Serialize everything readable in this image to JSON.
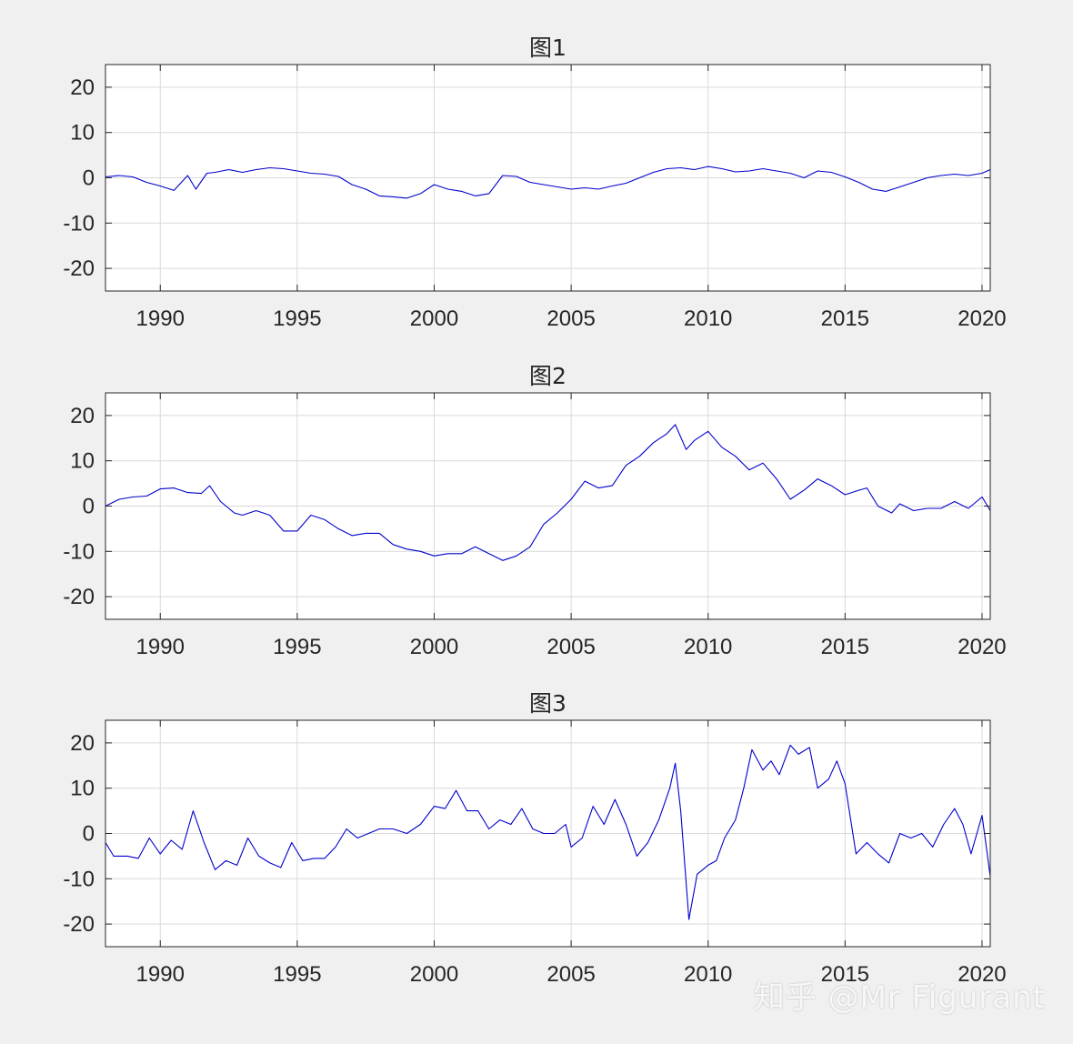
{
  "figure": {
    "background": "#f0f0f0",
    "watermark": "知乎 @Mr Figurant"
  },
  "colors": {
    "axes_bg": "#ffffff",
    "line": "#0000cc",
    "grid": "#d9d9d9",
    "text": "#262626",
    "axis": "#262626"
  },
  "chart_data": [
    {
      "type": "line",
      "title": "图1",
      "xlabel": "",
      "ylabel": "",
      "xlim": [
        1988.0,
        2020.3
      ],
      "ylim": [
        -25,
        25
      ],
      "xticks": [
        1990,
        1995,
        2000,
        2005,
        2010,
        2015,
        2020
      ],
      "yticks": [
        20,
        10,
        0,
        -10,
        -20
      ],
      "grid": true,
      "series": [
        {
          "x": [
            1988.0,
            1988.5,
            1989.0,
            1989.5,
            1990.0,
            1990.5,
            1991.0,
            1991.3,
            1991.7,
            1992.0,
            1992.5,
            1993.0,
            1993.5,
            1994.0,
            1994.5,
            1995.0,
            1995.5,
            1996.0,
            1996.5,
            1997.0,
            1997.5,
            1998.0,
            1998.5,
            1999.0,
            1999.5,
            2000.0,
            2000.5,
            2001.0,
            2001.5,
            2002.0,
            2002.5,
            2003.0,
            2003.5,
            2004.0,
            2004.5,
            2005.0,
            2005.5,
            2006.0,
            2006.5,
            2007.0,
            2007.5,
            2008.0,
            2008.5,
            2009.0,
            2009.5,
            2010.0,
            2010.5,
            2011.0,
            2011.5,
            2012.0,
            2012.5,
            2013.0,
            2013.5,
            2014.0,
            2014.5,
            2015.0,
            2015.5,
            2016.0,
            2016.5,
            2017.0,
            2017.5,
            2018.0,
            2018.5,
            2019.0,
            2019.5,
            2020.0,
            2020.3
          ],
          "y": [
            0.2,
            0.5,
            0.2,
            -1.0,
            -1.8,
            -2.8,
            0.5,
            -2.5,
            1.0,
            1.2,
            1.8,
            1.2,
            1.8,
            2.2,
            2.0,
            1.5,
            1.0,
            0.8,
            0.3,
            -1.5,
            -2.5,
            -4.0,
            -4.2,
            -4.5,
            -3.5,
            -1.5,
            -2.5,
            -3.0,
            -4.0,
            -3.5,
            0.5,
            0.3,
            -1.0,
            -1.5,
            -2.0,
            -2.5,
            -2.2,
            -2.5,
            -1.8,
            -1.2,
            0.0,
            1.2,
            2.0,
            2.2,
            1.8,
            2.5,
            2.0,
            1.3,
            1.5,
            2.0,
            1.5,
            1.0,
            0.0,
            1.5,
            1.2,
            0.2,
            -1.0,
            -2.5,
            -3.0,
            -2.0,
            -1.0,
            0.0,
            0.5,
            0.8,
            0.5,
            1.0,
            1.8
          ]
        }
      ]
    },
    {
      "type": "line",
      "title": "图2",
      "xlabel": "",
      "ylabel": "",
      "xlim": [
        1988.0,
        2020.3
      ],
      "ylim": [
        -25,
        25
      ],
      "xticks": [
        1990,
        1995,
        2000,
        2005,
        2010,
        2015,
        2020
      ],
      "yticks": [
        20,
        10,
        0,
        -10,
        -20
      ],
      "grid": true,
      "series": [
        {
          "x": [
            1988.0,
            1988.5,
            1989.0,
            1989.5,
            1990.0,
            1990.5,
            1991.0,
            1991.5,
            1991.8,
            1992.2,
            1992.7,
            1993.0,
            1993.5,
            1994.0,
            1994.5,
            1995.0,
            1995.5,
            1996.0,
            1996.5,
            1997.0,
            1997.5,
            1998.0,
            1998.5,
            1999.0,
            1999.5,
            2000.0,
            2000.5,
            2001.0,
            2001.5,
            2002.0,
            2002.5,
            2003.0,
            2003.5,
            2004.0,
            2004.5,
            2005.0,
            2005.5,
            2006.0,
            2006.5,
            2007.0,
            2007.5,
            2008.0,
            2008.5,
            2008.8,
            2009.2,
            2009.5,
            2010.0,
            2010.5,
            2011.0,
            2011.5,
            2012.0,
            2012.5,
            2013.0,
            2013.5,
            2014.0,
            2014.5,
            2015.0,
            2015.5,
            2015.8,
            2016.2,
            2016.7,
            2017.0,
            2017.5,
            2018.0,
            2018.5,
            2019.0,
            2019.5,
            2020.0,
            2020.3
          ],
          "y": [
            0.0,
            1.5,
            2.0,
            2.2,
            3.8,
            4.0,
            3.0,
            2.8,
            4.5,
            1.0,
            -1.5,
            -2.0,
            -1.0,
            -2.0,
            -5.5,
            -5.5,
            -2.0,
            -3.0,
            -5.0,
            -6.5,
            -6.0,
            -6.0,
            -8.5,
            -9.5,
            -10.0,
            -11.0,
            -10.5,
            -10.5,
            -9.0,
            -10.5,
            -12.0,
            -11.0,
            -9.0,
            -4.0,
            -1.5,
            1.5,
            5.5,
            4.0,
            4.5,
            9.0,
            11.0,
            14.0,
            16.0,
            18.0,
            12.5,
            14.5,
            16.5,
            13.0,
            11.0,
            8.0,
            9.5,
            6.0,
            1.5,
            3.5,
            6.0,
            4.5,
            2.5,
            3.5,
            4.0,
            0.0,
            -1.5,
            0.5,
            -1.0,
            -0.5,
            -0.5,
            1.0,
            -0.5,
            2.0,
            -1.0
          ]
        }
      ]
    },
    {
      "type": "line",
      "title": "图3",
      "xlabel": "",
      "ylabel": "",
      "xlim": [
        1988.0,
        2020.3
      ],
      "ylim": [
        -25,
        25
      ],
      "xticks": [
        1990,
        1995,
        2000,
        2005,
        2010,
        2015,
        2020
      ],
      "yticks": [
        20,
        10,
        0,
        -10,
        -20
      ],
      "grid": true,
      "series": [
        {
          "x": [
            1988.0,
            1988.3,
            1988.8,
            1989.2,
            1989.6,
            1990.0,
            1990.4,
            1990.8,
            1991.2,
            1991.6,
            1992.0,
            1992.4,
            1992.8,
            1993.2,
            1993.6,
            1994.0,
            1994.4,
            1994.8,
            1995.2,
            1995.6,
            1996.0,
            1996.4,
            1996.8,
            1997.2,
            1997.6,
            1998.0,
            1998.5,
            1999.0,
            1999.5,
            2000.0,
            2000.4,
            2000.8,
            2001.2,
            2001.6,
            2002.0,
            2002.4,
            2002.8,
            2003.2,
            2003.6,
            2004.0,
            2004.4,
            2004.8,
            2005.0,
            2005.4,
            2005.8,
            2006.2,
            2006.6,
            2007.0,
            2007.4,
            2007.8,
            2008.2,
            2008.6,
            2008.8,
            2009.0,
            2009.3,
            2009.6,
            2010.0,
            2010.3,
            2010.6,
            2011.0,
            2011.3,
            2011.6,
            2012.0,
            2012.3,
            2012.6,
            2013.0,
            2013.3,
            2013.7,
            2014.0,
            2014.4,
            2014.7,
            2015.0,
            2015.4,
            2015.8,
            2016.2,
            2016.6,
            2017.0,
            2017.4,
            2017.8,
            2018.2,
            2018.6,
            2019.0,
            2019.3,
            2019.6,
            2020.0,
            2020.3
          ],
          "y": [
            -2.0,
            -5.0,
            -5.0,
            -5.5,
            -1.0,
            -4.5,
            -1.5,
            -3.5,
            5.0,
            -2.0,
            -8.0,
            -6.0,
            -7.0,
            -1.0,
            -5.0,
            -6.5,
            -7.5,
            -2.0,
            -6.0,
            -5.5,
            -5.5,
            -3.0,
            1.0,
            -1.0,
            0.0,
            1.0,
            1.0,
            0.0,
            2.0,
            6.0,
            5.5,
            9.5,
            5.0,
            5.0,
            1.0,
            3.0,
            2.0,
            5.5,
            1.0,
            0.0,
            0.0,
            2.0,
            -3.0,
            -1.0,
            6.0,
            2.0,
            7.5,
            2.0,
            -5.0,
            -2.0,
            3.0,
            10.0,
            15.5,
            5.0,
            -19.0,
            -9.0,
            -7.0,
            -6.0,
            -1.0,
            3.0,
            10.0,
            18.5,
            14.0,
            16.0,
            13.0,
            19.5,
            17.5,
            19.0,
            10.0,
            12.0,
            16.0,
            11.0,
            -4.5,
            -2.0,
            -4.5,
            -6.5,
            0.0,
            -1.0,
            0.0,
            -3.0,
            2.0,
            5.5,
            2.0,
            -4.5,
            4.0,
            -9.5
          ]
        }
      ]
    }
  ]
}
